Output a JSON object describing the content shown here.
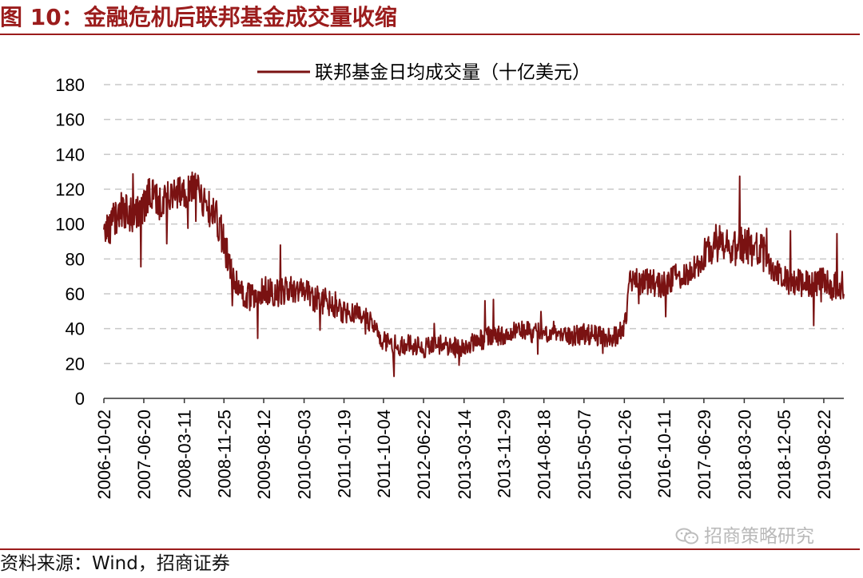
{
  "figure": {
    "title": "图 10：金融危机后联邦基金成交量收缩",
    "source": "资料来源：Wind，招商证券",
    "watermark": "招商策略研究"
  },
  "colors": {
    "accent": "#9b1c1c",
    "series": "#7a1212",
    "grid": "#c8c8c8"
  },
  "chart_data": {
    "type": "line",
    "title": "",
    "xlabel": "",
    "ylabel": "",
    "ylim": [
      0,
      180
    ],
    "yticks": [
      0,
      20,
      40,
      60,
      80,
      100,
      120,
      140,
      160,
      180
    ],
    "grid": "horizontal-dashed",
    "legend_position": "top-center",
    "xticks": [
      "2006-10-02",
      "2007-06-20",
      "2008-03-11",
      "2008-11-25",
      "2009-08-12",
      "2010-05-03",
      "2011-01-19",
      "2011-10-04",
      "2012-06-22",
      "2013-03-14",
      "2013-11-29",
      "2014-08-18",
      "2015-05-07",
      "2016-01-26",
      "2016-10-11",
      "2017-06-29",
      "2018-03-20",
      "2018-12-05",
      "2019-08-22"
    ],
    "series": [
      {
        "name": "联邦基金日均成交量（十亿美元）",
        "x": [
          "2006-10-02",
          "2006-12-01",
          "2007-02-01",
          "2007-04-01",
          "2007-06-20",
          "2007-08-15",
          "2007-10-15",
          "2007-12-15",
          "2008-03-11",
          "2008-05-15",
          "2008-07-15",
          "2008-09-15",
          "2008-10-15",
          "2008-11-25",
          "2009-01-15",
          "2009-03-15",
          "2009-05-15",
          "2009-08-12",
          "2009-11-15",
          "2010-02-15",
          "2010-05-03",
          "2010-08-15",
          "2010-11-15",
          "2011-01-19",
          "2011-04-15",
          "2011-07-15",
          "2011-10-04",
          "2012-01-15",
          "2012-04-15",
          "2012-06-22",
          "2012-09-15",
          "2012-12-15",
          "2013-03-14",
          "2013-06-15",
          "2013-09-15",
          "2013-11-29",
          "2014-03-15",
          "2014-06-15",
          "2014-08-18",
          "2014-11-15",
          "2015-02-15",
          "2015-05-07",
          "2015-08-15",
          "2015-11-15",
          "2016-01-26",
          "2016-03-01",
          "2016-06-15",
          "2016-10-11",
          "2017-01-15",
          "2017-04-15",
          "2017-06-29",
          "2017-09-15",
          "2017-12-15",
          "2018-03-20",
          "2018-06-15",
          "2018-09-15",
          "2018-12-05",
          "2019-03-15",
          "2019-06-15",
          "2019-08-22",
          "2019-10-15",
          "2019-12-31"
        ],
        "y": [
          95,
          102,
          108,
          105,
          112,
          118,
          108,
          120,
          115,
          122,
          112,
          108,
          103,
          88,
          72,
          62,
          58,
          62,
          60,
          63,
          61,
          56,
          54,
          51,
          49,
          44,
          33,
          30,
          31,
          29,
          31,
          29,
          30,
          33,
          36,
          37,
          39,
          37,
          38,
          39,
          36,
          37,
          36,
          35,
          40,
          66,
          68,
          65,
          70,
          74,
          80,
          90,
          85,
          88,
          86,
          76,
          68,
          66,
          66,
          68,
          64,
          65
        ]
      }
    ]
  }
}
